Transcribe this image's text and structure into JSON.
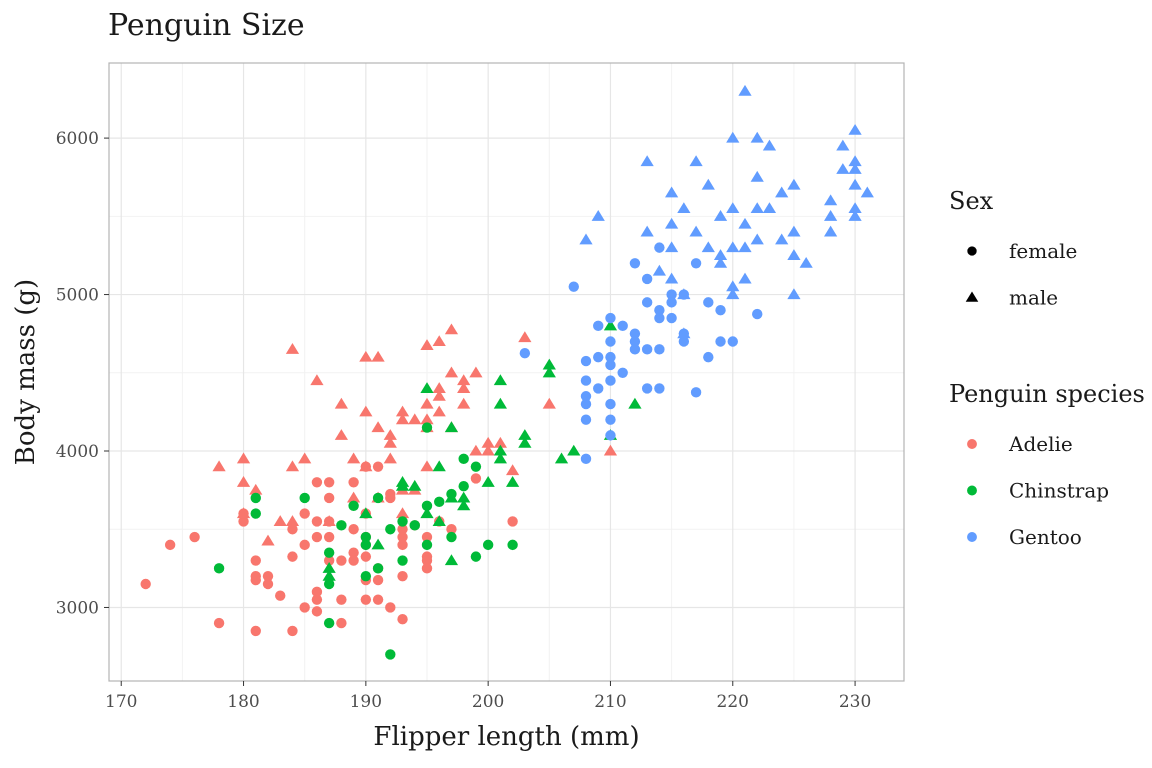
{
  "chart_data": {
    "type": "scatter",
    "title": "Penguin Size",
    "xlabel": "Flipper length (mm)",
    "ylabel": "Body mass (g)",
    "xlim": [
      169,
      234
    ],
    "ylim": [
      2530,
      6480
    ],
    "xticks": [
      170,
      180,
      190,
      200,
      210,
      220,
      230
    ],
    "yticks": [
      3000,
      4000,
      5000,
      6000
    ],
    "grid": true,
    "legend_position": "right",
    "legends": [
      {
        "title": "Sex",
        "entries": [
          {
            "label": "female",
            "shape": "circle"
          },
          {
            "label": "male",
            "shape": "triangle"
          }
        ]
      },
      {
        "title": "Penguin species",
        "entries": [
          {
            "label": "Adelie",
            "color": "#F8766D"
          },
          {
            "label": "Chinstrap",
            "color": "#00BA38"
          },
          {
            "label": "Gentoo",
            "color": "#619CFF"
          }
        ]
      }
    ],
    "series": [
      {
        "name": "Adelie",
        "sex": "female",
        "color": "#F8766D",
        "shape": "circle",
        "points": [
          [
            172,
            3150
          ],
          [
            174,
            3400
          ],
          [
            176,
            3450
          ],
          [
            178,
            2900
          ],
          [
            180,
            3550
          ],
          [
            180,
            3600
          ],
          [
            181,
            2850
          ],
          [
            181,
            3200
          ],
          [
            181,
            3300
          ],
          [
            181,
            3175
          ],
          [
            182,
            3200
          ],
          [
            182,
            3150
          ],
          [
            183,
            3075
          ],
          [
            184,
            2850
          ],
          [
            184,
            3325
          ],
          [
            184,
            3500
          ],
          [
            185,
            3000
          ],
          [
            185,
            3400
          ],
          [
            185,
            3600
          ],
          [
            186,
            3100
          ],
          [
            186,
            3050
          ],
          [
            186,
            3550
          ],
          [
            186,
            3800
          ],
          [
            186,
            3450
          ],
          [
            186,
            2975
          ],
          [
            187,
            3550
          ],
          [
            187,
            3800
          ],
          [
            187,
            3700
          ],
          [
            187,
            3450
          ],
          [
            187,
            3300
          ],
          [
            188,
            3050
          ],
          [
            188,
            2900
          ],
          [
            188,
            3300
          ],
          [
            189,
            3500
          ],
          [
            189,
            3800
          ],
          [
            189,
            3350
          ],
          [
            189,
            3300
          ],
          [
            190,
            3050
          ],
          [
            190,
            3450
          ],
          [
            190,
            3400
          ],
          [
            190,
            3900
          ],
          [
            190,
            3600
          ],
          [
            190,
            3325
          ],
          [
            190,
            3175
          ],
          [
            191,
            3050
          ],
          [
            191,
            3900
          ],
          [
            191,
            3175
          ],
          [
            191,
            3250
          ],
          [
            192,
            3000
          ],
          [
            192,
            3725
          ],
          [
            192,
            3700
          ],
          [
            193,
            2925
          ],
          [
            193,
            3200
          ],
          [
            193,
            3450
          ],
          [
            193,
            3500
          ],
          [
            193,
            3400
          ],
          [
            194,
            3525
          ],
          [
            195,
            3325
          ],
          [
            195,
            3300
          ],
          [
            195,
            3250
          ],
          [
            195,
            3450
          ],
          [
            196,
            3550
          ],
          [
            197,
            3500
          ],
          [
            199,
            3825
          ],
          [
            202,
            3550
          ]
        ]
      },
      {
        "name": "Adelie",
        "sex": "male",
        "color": "#F8766D",
        "shape": "triangle",
        "points": [
          [
            178,
            3900
          ],
          [
            180,
            3950
          ],
          [
            180,
            3800
          ],
          [
            180,
            3600
          ],
          [
            181,
            3750
          ],
          [
            182,
            3425
          ],
          [
            183,
            3550
          ],
          [
            184,
            3550
          ],
          [
            184,
            3900
          ],
          [
            184,
            4650
          ],
          [
            185,
            3950
          ],
          [
            186,
            4450
          ],
          [
            187,
            3550
          ],
          [
            188,
            4300
          ],
          [
            188,
            4100
          ],
          [
            189,
            3950
          ],
          [
            189,
            3700
          ],
          [
            190,
            4600
          ],
          [
            190,
            4250
          ],
          [
            190,
            3900
          ],
          [
            191,
            4600
          ],
          [
            191,
            4150
          ],
          [
            191,
            3700
          ],
          [
            192,
            4100
          ],
          [
            192,
            4050
          ],
          [
            192,
            3950
          ],
          [
            193,
            4250
          ],
          [
            193,
            4200
          ],
          [
            193,
            3750
          ],
          [
            193,
            3600
          ],
          [
            194,
            4200
          ],
          [
            194,
            3750
          ],
          [
            195,
            4675
          ],
          [
            195,
            4300
          ],
          [
            195,
            4200
          ],
          [
            195,
            4150
          ],
          [
            195,
            3900
          ],
          [
            196,
            4700
          ],
          [
            196,
            4400
          ],
          [
            196,
            4350
          ],
          [
            196,
            4250
          ],
          [
            197,
            4775
          ],
          [
            197,
            4500
          ],
          [
            197,
            4150
          ],
          [
            198,
            4400
          ],
          [
            198,
            4450
          ],
          [
            198,
            4300
          ],
          [
            199,
            4500
          ],
          [
            199,
            4000
          ],
          [
            200,
            4050
          ],
          [
            200,
            4000
          ],
          [
            201,
            4050
          ],
          [
            202,
            3875
          ],
          [
            203,
            4725
          ],
          [
            205,
            4300
          ],
          [
            210,
            4000
          ]
        ]
      },
      {
        "name": "Chinstrap",
        "sex": "female",
        "color": "#00BA38",
        "shape": "circle",
        "points": [
          [
            178,
            3250
          ],
          [
            181,
            3700
          ],
          [
            181,
            3600
          ],
          [
            185,
            3700
          ],
          [
            187,
            3350
          ],
          [
            187,
            3150
          ],
          [
            187,
            2900
          ],
          [
            188,
            3525
          ],
          [
            189,
            3650
          ],
          [
            190,
            3450
          ],
          [
            190,
            3400
          ],
          [
            190,
            3200
          ],
          [
            191,
            3700
          ],
          [
            191,
            3250
          ],
          [
            192,
            2700
          ],
          [
            192,
            3500
          ],
          [
            193,
            3550
          ],
          [
            193,
            3300
          ],
          [
            194,
            3525
          ],
          [
            195,
            4150
          ],
          [
            195,
            3650
          ],
          [
            195,
            3400
          ],
          [
            196,
            3675
          ],
          [
            197,
            3450
          ],
          [
            197,
            3725
          ],
          [
            198,
            3775
          ],
          [
            198,
            3950
          ],
          [
            199,
            3900
          ],
          [
            199,
            3325
          ],
          [
            200,
            3400
          ],
          [
            202,
            3400
          ]
        ]
      },
      {
        "name": "Chinstrap",
        "sex": "male",
        "color": "#00BA38",
        "shape": "triangle",
        "points": [
          [
            187,
            3250
          ],
          [
            187,
            3200
          ],
          [
            190,
            3600
          ],
          [
            191,
            3400
          ],
          [
            193,
            3775
          ],
          [
            193,
            3800
          ],
          [
            194,
            3775
          ],
          [
            195,
            4400
          ],
          [
            195,
            3600
          ],
          [
            196,
            3550
          ],
          [
            196,
            3900
          ],
          [
            197,
            4150
          ],
          [
            197,
            3700
          ],
          [
            197,
            3300
          ],
          [
            198,
            3650
          ],
          [
            198,
            3700
          ],
          [
            200,
            3800
          ],
          [
            201,
            4450
          ],
          [
            201,
            4300
          ],
          [
            201,
            3950
          ],
          [
            201,
            4000
          ],
          [
            202,
            3800
          ],
          [
            203,
            4100
          ],
          [
            203,
            4050
          ],
          [
            205,
            4550
          ],
          [
            205,
            4500
          ],
          [
            206,
            3950
          ],
          [
            207,
            4000
          ],
          [
            210,
            4800
          ],
          [
            210,
            4100
          ],
          [
            212,
            4300
          ]
        ]
      },
      {
        "name": "Gentoo",
        "sex": "female",
        "color": "#619CFF",
        "shape": "circle",
        "points": [
          [
            203,
            4625
          ],
          [
            207,
            5050
          ],
          [
            208,
            4575
          ],
          [
            208,
            4450
          ],
          [
            208,
            4300
          ],
          [
            208,
            4200
          ],
          [
            208,
            3950
          ],
          [
            208,
            4350
          ],
          [
            209,
            4800
          ],
          [
            209,
            4600
          ],
          [
            209,
            4400
          ],
          [
            210,
            4850
          ],
          [
            210,
            4700
          ],
          [
            210,
            4600
          ],
          [
            210,
            4550
          ],
          [
            210,
            4450
          ],
          [
            210,
            4300
          ],
          [
            210,
            4200
          ],
          [
            210,
            4100
          ],
          [
            211,
            4800
          ],
          [
            211,
            4500
          ],
          [
            212,
            4750
          ],
          [
            212,
            4700
          ],
          [
            212,
            4650
          ],
          [
            212,
            5200
          ],
          [
            213,
            4950
          ],
          [
            213,
            4650
          ],
          [
            213,
            5100
          ],
          [
            213,
            4400
          ],
          [
            214,
            4900
          ],
          [
            214,
            4850
          ],
          [
            214,
            4650
          ],
          [
            214,
            4400
          ],
          [
            214,
            5300
          ],
          [
            215,
            5000
          ],
          [
            215,
            4850
          ],
          [
            215,
            4950
          ],
          [
            216,
            5000
          ],
          [
            216,
            4700
          ],
          [
            216,
            4750
          ],
          [
            217,
            5200
          ],
          [
            217,
            4375
          ],
          [
            218,
            4950
          ],
          [
            218,
            4600
          ],
          [
            219,
            4700
          ],
          [
            219,
            4900
          ],
          [
            220,
            4700
          ],
          [
            222,
            4875
          ]
        ]
      },
      {
        "name": "Gentoo",
        "sex": "male",
        "color": "#619CFF",
        "shape": "triangle",
        "points": [
          [
            208,
            5350
          ],
          [
            209,
            5500
          ],
          [
            213,
            5850
          ],
          [
            213,
            5400
          ],
          [
            214,
            5150
          ],
          [
            215,
            5650
          ],
          [
            215,
            5450
          ],
          [
            215,
            5300
          ],
          [
            215,
            5100
          ],
          [
            216,
            5550
          ],
          [
            216,
            5000
          ],
          [
            216,
            4750
          ],
          [
            217,
            5850
          ],
          [
            217,
            5400
          ],
          [
            218,
            5700
          ],
          [
            218,
            5300
          ],
          [
            219,
            5500
          ],
          [
            219,
            5250
          ],
          [
            219,
            5200
          ],
          [
            220,
            5550
          ],
          [
            220,
            5300
          ],
          [
            220,
            5000
          ],
          [
            220,
            5050
          ],
          [
            221,
            6300
          ],
          [
            221,
            5450
          ],
          [
            221,
            5300
          ],
          [
            221,
            5100
          ],
          [
            222,
            6000
          ],
          [
            222,
            5750
          ],
          [
            222,
            5550
          ],
          [
            222,
            5350
          ],
          [
            223,
            5950
          ],
          [
            223,
            5550
          ],
          [
            224,
            5650
          ],
          [
            224,
            5350
          ],
          [
            225,
            5700
          ],
          [
            225,
            5400
          ],
          [
            225,
            5250
          ],
          [
            225,
            5000
          ],
          [
            226,
            5200
          ],
          [
            228,
            5600
          ],
          [
            228,
            5500
          ],
          [
            228,
            5400
          ],
          [
            229,
            5950
          ],
          [
            229,
            5800
          ],
          [
            230,
            6050
          ],
          [
            230,
            5850
          ],
          [
            230,
            5800
          ],
          [
            230,
            5700
          ],
          [
            230,
            5550
          ],
          [
            230,
            5500
          ],
          [
            231,
            5650
          ],
          [
            220,
            6000
          ]
        ]
      }
    ]
  }
}
